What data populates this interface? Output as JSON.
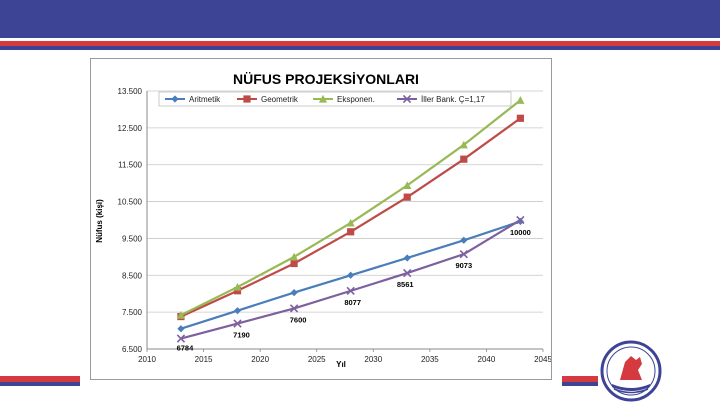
{
  "chart_data": {
    "type": "line",
    "title": "NÜFUS PROJEKSİYONLARI",
    "xlabel": "Yıl",
    "ylabel": "Nüfus (kişi)",
    "xlim": [
      2010,
      2045
    ],
    "ylim": [
      6500,
      13500
    ],
    "xticks": [
      2010,
      2015,
      2020,
      2025,
      2030,
      2035,
      2040,
      2045
    ],
    "yticks": [
      6500,
      7500,
      8500,
      9500,
      10500,
      11500,
      12500,
      13500
    ],
    "ytick_labels": [
      "6.500",
      "7.500",
      "8.500",
      "9.500",
      "10.500",
      "11.500",
      "12.500",
      "13.500"
    ],
    "grid": true,
    "legend": "top",
    "x": [
      2013,
      2018,
      2023,
      2028,
      2033,
      2038,
      2043
    ],
    "series": [
      {
        "name": "Aritmetik",
        "color": "#4a7ebb",
        "marker": "diamond",
        "values": [
          7050,
          7540,
          8030,
          8500,
          8970,
          9450,
          9960
        ]
      },
      {
        "name": "Geometrik",
        "color": "#be4b48",
        "marker": "square",
        "values": [
          7380,
          8080,
          8820,
          9680,
          10620,
          11650,
          12760
        ]
      },
      {
        "name": "Eksponen.",
        "color": "#98b954",
        "marker": "triangle",
        "values": [
          7420,
          8180,
          9000,
          9920,
          10940,
          12040,
          13250
        ]
      },
      {
        "name": "İller Bank. Ç=1,17",
        "color": "#7d60a0",
        "marker": "x",
        "values": [
          6784,
          7190,
          7600,
          8077,
          8561,
          9073,
          10000
        ]
      }
    ],
    "annotations": [
      {
        "text": "6784",
        "x": 2013,
        "y": 6784
      },
      {
        "text": "7190",
        "x": 2018,
        "y": 7190
      },
      {
        "text": "7600",
        "x": 2023,
        "y": 7600
      },
      {
        "text": "8077",
        "x": 2028,
        "y": 8077
      },
      {
        "text": "8561",
        "x": 2033,
        "y": 8561
      },
      {
        "text": "9073",
        "x": 2038,
        "y": 9073
      },
      {
        "text": "10000",
        "x": 2043,
        "y": 10000
      }
    ]
  }
}
